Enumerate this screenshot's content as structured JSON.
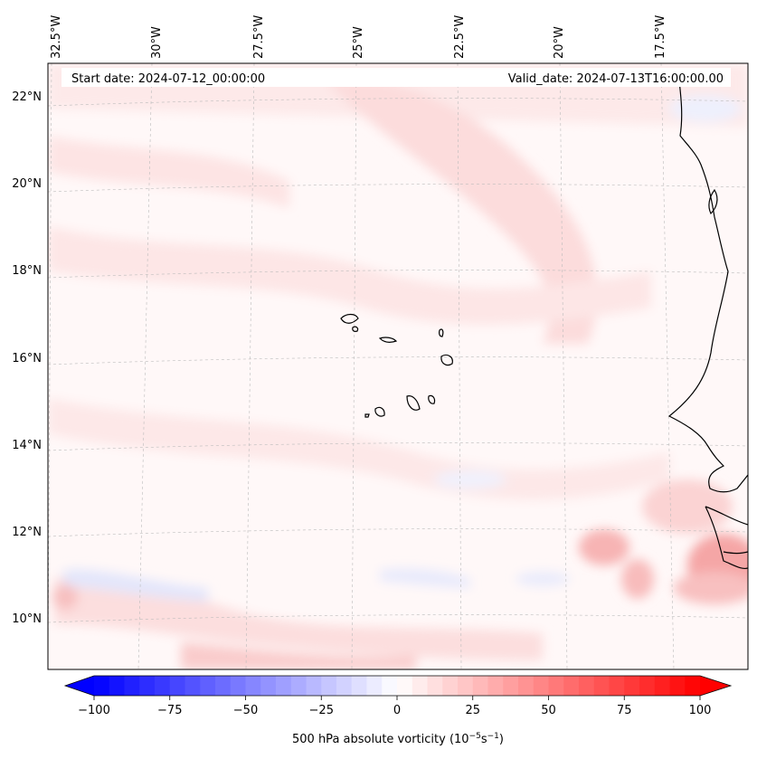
{
  "map": {
    "start_date": "Start date: 2024-07-12_00:00:00",
    "valid_date": "Valid_date: 2024-07-13T16:00:00.00",
    "lon_labels": [
      "32.5°W",
      "30°W",
      "27.5°W",
      "25°W",
      "22.5°W",
      "20°W",
      "17.5°W"
    ],
    "lat_labels": [
      "22°N",
      "20°N",
      "18°N",
      "16°N",
      "14°N",
      "12°N",
      "10°N"
    ]
  },
  "colorbar": {
    "label": "500 hPa absolute vorticity (10",
    "label_exp": "−5",
    "label_unit": "s",
    "label_unit_exp": "−1",
    "label_close": ")",
    "ticks": [
      "−100",
      "−75",
      "−50",
      "−25",
      "0",
      "25",
      "50",
      "75",
      "100"
    ],
    "vmin": -100,
    "vmax": 100,
    "neg_color": "#0000ff",
    "pos_color": "#ff0000"
  }
}
